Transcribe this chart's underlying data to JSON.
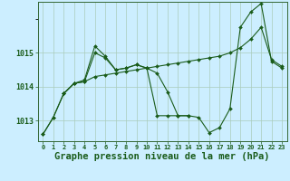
{
  "background_color": "#cceeff",
  "plot_bg_color": "#cceeff",
  "grid_color": "#aaccbb",
  "line_color": "#1a5c1a",
  "marker_color": "#1a5c1a",
  "xlabel": "Graphe pression niveau de la mer (hPa)",
  "xlabel_fontsize": 7.5,
  "ylim": [
    1012.4,
    1016.5
  ],
  "xlim": [
    -0.5,
    23.5
  ],
  "yticks": [
    1013,
    1014,
    1015
  ],
  "xticks": [
    0,
    1,
    2,
    3,
    4,
    5,
    6,
    7,
    8,
    9,
    10,
    11,
    12,
    13,
    14,
    15,
    16,
    17,
    18,
    19,
    20,
    21,
    22,
    23
  ],
  "series": [
    {
      "x": [
        0,
        1,
        2,
        3,
        4,
        5,
        6,
        7,
        8,
        9,
        10,
        11,
        12,
        13,
        14
      ],
      "y": [
        1012.6,
        1013.1,
        1013.8,
        1014.1,
        1014.2,
        1015.2,
        1014.9,
        1014.5,
        1014.55,
        1014.65,
        1014.55,
        1014.4,
        1013.85,
        1013.15,
        1013.15
      ],
      "marker": "D",
      "markersize": 2.0,
      "linewidth": 0.8
    },
    {
      "x": [
        2,
        3,
        4,
        5,
        6,
        7,
        8,
        9,
        10,
        11,
        12,
        13,
        14,
        15,
        16,
        17,
        18,
        19,
        20,
        21,
        22,
        23
      ],
      "y": [
        1013.8,
        1014.1,
        1014.15,
        1014.3,
        1014.35,
        1014.4,
        1014.45,
        1014.5,
        1014.55,
        1014.6,
        1014.65,
        1014.7,
        1014.75,
        1014.8,
        1014.85,
        1014.9,
        1015.0,
        1015.15,
        1015.4,
        1015.75,
        1014.8,
        1014.6
      ],
      "marker": "D",
      "markersize": 2.0,
      "linewidth": 0.8
    },
    {
      "x": [
        0,
        1,
        2,
        3,
        4,
        5,
        6,
        7,
        8,
        9,
        10,
        11,
        12,
        13,
        14,
        15,
        16,
        17,
        18,
        19,
        20,
        21,
        22,
        23
      ],
      "y": [
        1012.6,
        1013.1,
        1013.8,
        1014.1,
        1014.15,
        1015.0,
        1014.85,
        1014.5,
        1014.55,
        1014.65,
        1014.55,
        1013.15,
        1013.15,
        1013.15,
        1013.15,
        1013.1,
        1012.65,
        1012.8,
        1013.35,
        1015.75,
        1016.2,
        1016.45,
        1014.75,
        1014.55
      ],
      "marker": "D",
      "markersize": 2.0,
      "linewidth": 0.8
    }
  ]
}
